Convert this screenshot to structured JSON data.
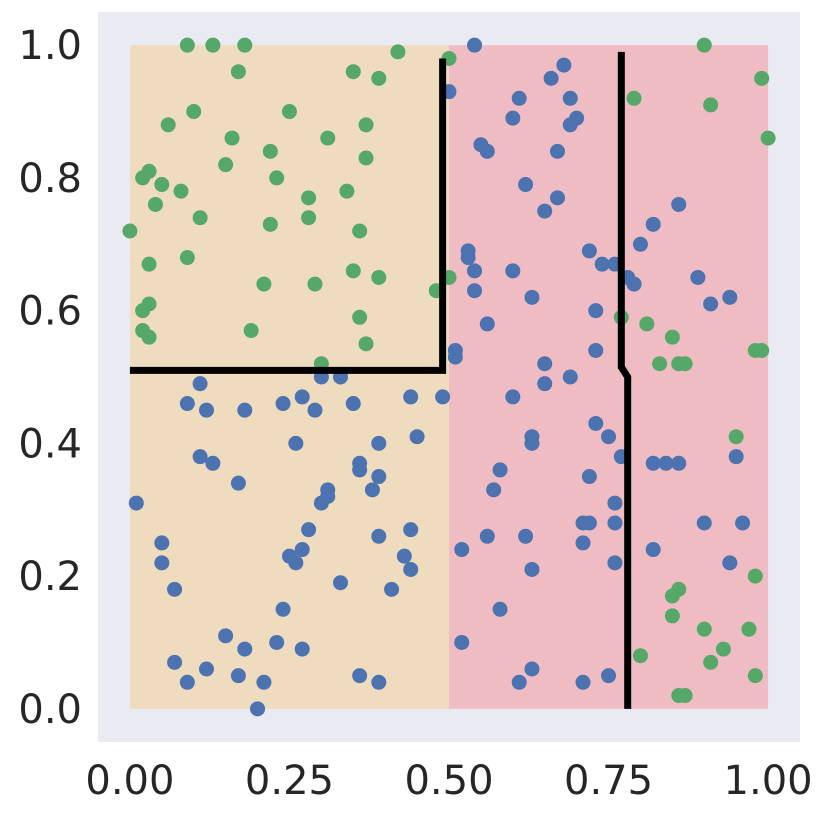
{
  "chart_data": {
    "type": "scatter",
    "title": "",
    "xlabel": "",
    "ylabel": "",
    "xlim": [
      -0.05,
      1.05
    ],
    "ylim": [
      -0.05,
      1.05
    ],
    "xticks": [
      "0.00",
      "0.25",
      "0.50",
      "0.75",
      "1.00"
    ],
    "xtick_values": [
      0,
      0.25,
      0.5,
      0.75,
      1.0
    ],
    "yticks": [
      "0.0",
      "0.2",
      "0.4",
      "0.6",
      "0.8",
      "1.0"
    ],
    "ytick_values": [
      0,
      0.2,
      0.4,
      0.6,
      0.8,
      1.0
    ],
    "grid": false,
    "colors": {
      "background": "#eaeaf2",
      "region_left": "#efdcbf",
      "region_right": "#efbcc3",
      "blue": "#4c72b0",
      "green": "#55a868",
      "boundary": "#000000"
    },
    "regions": [
      {
        "x0": 0.0,
        "x1": 0.5,
        "y0": 0.0,
        "y1": 1.0,
        "color": "region_left"
      },
      {
        "x0": 0.5,
        "x1": 1.0,
        "y0": 0.0,
        "y1": 1.0,
        "color": "region_right"
      }
    ],
    "boundaries": [
      [
        [
          0.0,
          0.51
        ],
        [
          0.49,
          0.51
        ],
        [
          0.49,
          0.98
        ]
      ],
      [
        [
          0.77,
          0.99
        ],
        [
          0.77,
          0.515
        ],
        [
          0.78,
          0.5
        ],
        [
          0.78,
          0.0
        ]
      ]
    ],
    "series": [
      {
        "color": "green",
        "points": [
          [
            0.09,
            1.0
          ],
          [
            0.13,
            1.0
          ],
          [
            0.18,
            1.0
          ],
          [
            0.17,
            0.96
          ],
          [
            0.42,
            0.99
          ],
          [
            0.35,
            0.96
          ],
          [
            0.39,
            0.95
          ],
          [
            0.5,
            0.98
          ],
          [
            0.1,
            0.9
          ],
          [
            0.25,
            0.9
          ],
          [
            0.06,
            0.88
          ],
          [
            0.37,
            0.88
          ],
          [
            0.16,
            0.86
          ],
          [
            0.31,
            0.86
          ],
          [
            0.22,
            0.84
          ],
          [
            0.15,
            0.82
          ],
          [
            0.37,
            0.83
          ],
          [
            0.03,
            0.81
          ],
          [
            0.02,
            0.8
          ],
          [
            0.23,
            0.8
          ],
          [
            0.05,
            0.79
          ],
          [
            0.08,
            0.78
          ],
          [
            0.28,
            0.77
          ],
          [
            0.34,
            0.78
          ],
          [
            0.04,
            0.76
          ],
          [
            0.11,
            0.74
          ],
          [
            0.22,
            0.73
          ],
          [
            0.28,
            0.74
          ],
          [
            0.36,
            0.72
          ],
          [
            0.0,
            0.72
          ],
          [
            0.03,
            0.67
          ],
          [
            0.09,
            0.68
          ],
          [
            0.35,
            0.66
          ],
          [
            0.39,
            0.65
          ],
          [
            0.29,
            0.64
          ],
          [
            0.21,
            0.64
          ],
          [
            0.48,
            0.63
          ],
          [
            0.5,
            0.65
          ],
          [
            0.03,
            0.61
          ],
          [
            0.02,
            0.6
          ],
          [
            0.36,
            0.59
          ],
          [
            0.02,
            0.57
          ],
          [
            0.03,
            0.56
          ],
          [
            0.19,
            0.57
          ],
          [
            0.37,
            0.55
          ],
          [
            0.3,
            0.52
          ],
          [
            0.79,
            0.92
          ],
          [
            0.91,
            0.91
          ],
          [
            0.9,
            1.0
          ],
          [
            0.99,
            0.95
          ],
          [
            1.0,
            0.86
          ],
          [
            0.77,
            0.59
          ],
          [
            0.81,
            0.58
          ],
          [
            0.85,
            0.56
          ],
          [
            0.83,
            0.52
          ],
          [
            0.86,
            0.52
          ],
          [
            0.87,
            0.52
          ],
          [
            0.99,
            0.54
          ],
          [
            0.98,
            0.54
          ],
          [
            0.95,
            0.41
          ],
          [
            0.98,
            0.2
          ],
          [
            0.85,
            0.17
          ],
          [
            0.86,
            0.18
          ],
          [
            0.85,
            0.14
          ],
          [
            0.9,
            0.12
          ],
          [
            0.97,
            0.12
          ],
          [
            0.8,
            0.08
          ],
          [
            0.93,
            0.09
          ],
          [
            0.91,
            0.07
          ],
          [
            0.98,
            0.05
          ],
          [
            0.86,
            0.02
          ],
          [
            0.87,
            0.02
          ]
        ]
      },
      {
        "color": "blue",
        "points": [
          [
            0.54,
            1.0
          ],
          [
            0.68,
            0.97
          ],
          [
            0.66,
            0.95
          ],
          [
            0.5,
            0.93
          ],
          [
            0.61,
            0.92
          ],
          [
            0.69,
            0.92
          ],
          [
            0.7,
            0.89
          ],
          [
            0.6,
            0.89
          ],
          [
            0.69,
            0.88
          ],
          [
            0.55,
            0.85
          ],
          [
            0.56,
            0.84
          ],
          [
            0.67,
            0.84
          ],
          [
            0.62,
            0.79
          ],
          [
            0.67,
            0.77
          ],
          [
            0.65,
            0.75
          ],
          [
            0.86,
            0.76
          ],
          [
            0.82,
            0.73
          ],
          [
            0.8,
            0.7
          ],
          [
            0.72,
            0.69
          ],
          [
            0.53,
            0.69
          ],
          [
            0.53,
            0.68
          ],
          [
            0.76,
            0.67
          ],
          [
            0.74,
            0.67
          ],
          [
            0.6,
            0.66
          ],
          [
            0.54,
            0.66
          ],
          [
            0.78,
            0.65
          ],
          [
            0.79,
            0.64
          ],
          [
            0.89,
            0.65
          ],
          [
            0.54,
            0.63
          ],
          [
            0.63,
            0.62
          ],
          [
            0.94,
            0.62
          ],
          [
            0.91,
            0.61
          ],
          [
            0.73,
            0.6
          ],
          [
            0.56,
            0.58
          ],
          [
            0.73,
            0.54
          ],
          [
            0.51,
            0.54
          ],
          [
            0.51,
            0.53
          ],
          [
            0.65,
            0.52
          ],
          [
            0.69,
            0.5
          ],
          [
            0.65,
            0.49
          ],
          [
            0.6,
            0.47
          ],
          [
            0.73,
            0.43
          ],
          [
            0.63,
            0.41
          ],
          [
            0.63,
            0.4
          ],
          [
            0.75,
            0.41
          ],
          [
            0.77,
            0.38
          ],
          [
            0.82,
            0.37
          ],
          [
            0.84,
            0.37
          ],
          [
            0.86,
            0.37
          ],
          [
            0.95,
            0.38
          ],
          [
            0.58,
            0.36
          ],
          [
            0.72,
            0.35
          ],
          [
            0.57,
            0.33
          ],
          [
            0.76,
            0.31
          ],
          [
            0.76,
            0.28
          ],
          [
            0.71,
            0.28
          ],
          [
            0.72,
            0.28
          ],
          [
            0.9,
            0.28
          ],
          [
            0.96,
            0.28
          ],
          [
            0.56,
            0.26
          ],
          [
            0.62,
            0.26
          ],
          [
            0.71,
            0.25
          ],
          [
            0.52,
            0.24
          ],
          [
            0.82,
            0.24
          ],
          [
            0.63,
            0.21
          ],
          [
            0.76,
            0.22
          ],
          [
            0.94,
            0.22
          ],
          [
            0.58,
            0.15
          ],
          [
            0.52,
            0.1
          ],
          [
            0.63,
            0.06
          ],
          [
            0.61,
            0.04
          ],
          [
            0.71,
            0.04
          ],
          [
            0.75,
            0.05
          ],
          [
            0.11,
            0.49
          ],
          [
            0.09,
            0.46
          ],
          [
            0.12,
            0.45
          ],
          [
            0.18,
            0.45
          ],
          [
            0.24,
            0.46
          ],
          [
            0.27,
            0.47
          ],
          [
            0.3,
            0.5
          ],
          [
            0.33,
            0.5
          ],
          [
            0.29,
            0.45
          ],
          [
            0.35,
            0.46
          ],
          [
            0.44,
            0.47
          ],
          [
            0.49,
            0.47
          ],
          [
            0.45,
            0.41
          ],
          [
            0.39,
            0.4
          ],
          [
            0.26,
            0.4
          ],
          [
            0.11,
            0.38
          ],
          [
            0.13,
            0.37
          ],
          [
            0.36,
            0.37
          ],
          [
            0.36,
            0.36
          ],
          [
            0.17,
            0.34
          ],
          [
            0.39,
            0.35
          ],
          [
            0.31,
            0.33
          ],
          [
            0.31,
            0.32
          ],
          [
            0.38,
            0.33
          ],
          [
            0.01,
            0.31
          ],
          [
            0.3,
            0.31
          ],
          [
            0.28,
            0.27
          ],
          [
            0.39,
            0.26
          ],
          [
            0.44,
            0.27
          ],
          [
            0.05,
            0.25
          ],
          [
            0.27,
            0.24
          ],
          [
            0.25,
            0.23
          ],
          [
            0.43,
            0.23
          ],
          [
            0.05,
            0.22
          ],
          [
            0.26,
            0.22
          ],
          [
            0.44,
            0.21
          ],
          [
            0.33,
            0.19
          ],
          [
            0.07,
            0.18
          ],
          [
            0.41,
            0.18
          ],
          [
            0.24,
            0.15
          ],
          [
            0.15,
            0.11
          ],
          [
            0.23,
            0.1
          ],
          [
            0.18,
            0.09
          ],
          [
            0.27,
            0.09
          ],
          [
            0.07,
            0.07
          ],
          [
            0.12,
            0.06
          ],
          [
            0.09,
            0.04
          ],
          [
            0.17,
            0.05
          ],
          [
            0.21,
            0.04
          ],
          [
            0.36,
            0.05
          ],
          [
            0.39,
            0.04
          ],
          [
            0.2,
            0.0
          ]
        ]
      }
    ]
  }
}
